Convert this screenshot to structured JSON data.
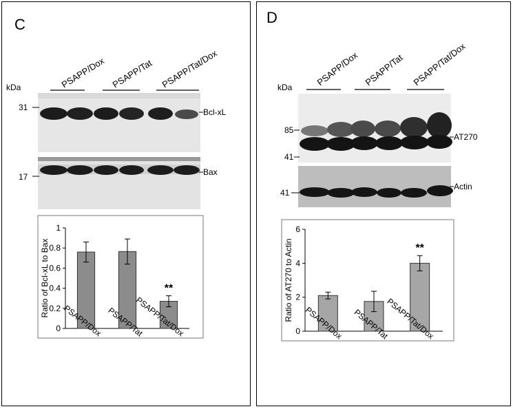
{
  "panel_c": {
    "letter": "C",
    "lane_groups": [
      "PSAPP/Dox",
      "PSAPP/Tat",
      "PSAPP/Tat/Dox"
    ],
    "kda_label": "kDa",
    "blots": [
      {
        "name": "Bcl-xL",
        "markers": [
          "31"
        ]
      },
      {
        "name": "Bax",
        "markers": [
          "17"
        ]
      }
    ]
  },
  "panel_d": {
    "letter": "D",
    "lane_groups": [
      "PSAPP/Dox",
      "PSAPP/Tat",
      "PSAPP/Tat/Dox"
    ],
    "kda_label": "kDa",
    "blots": [
      {
        "name": "AT270",
        "markers": [
          "85",
          "41"
        ]
      },
      {
        "name": "Actin",
        "markers": [
          "41"
        ]
      }
    ]
  },
  "chart_data": [
    {
      "type": "bar",
      "categories": [
        "PSAPP/Dox",
        "PSAPP/Tat",
        "PSAPP/Tat/Dox"
      ],
      "values": [
        0.76,
        0.765,
        0.27
      ],
      "errors": [
        0.1,
        0.125,
        0.055
      ],
      "ylabel": "Ratio of Bcl-xL to Bax",
      "ylim": [
        0,
        1
      ],
      "yticks": [
        "0",
        "0.2",
        "0.4",
        "0.6",
        "0.8",
        "1"
      ],
      "annotations": [
        {
          "category": "PSAPP/Tat/Dox",
          "text": "**"
        }
      ],
      "bar_color": "#8c8c8c",
      "grid": false
    },
    {
      "type": "bar",
      "categories": [
        "PSAPP/Dox",
        "PSAPP/Tat",
        "PSAPP/Tat/Dox"
      ],
      "values": [
        2.1,
        1.75,
        4.0
      ],
      "errors": [
        0.2,
        0.6,
        0.45
      ],
      "ylabel": "Ratio of AT270 to Actin",
      "ylim": [
        0,
        6
      ],
      "yticks": [
        "0",
        "2",
        "4",
        "6"
      ],
      "annotations": [
        {
          "category": "PSAPP/Tat/Dox",
          "text": "**"
        }
      ],
      "bar_color": "#a6a6a6",
      "grid": false
    }
  ]
}
